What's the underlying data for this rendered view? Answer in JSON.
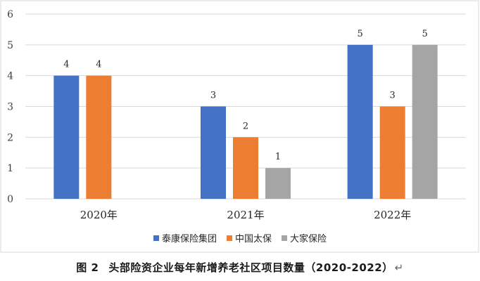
{
  "chart_data": {
    "type": "bar",
    "categories": [
      "2020年",
      "2021年",
      "2022年"
    ],
    "series": [
      {
        "name": "泰康保险集团",
        "color": "#4472C4",
        "values": [
          4,
          3,
          5
        ]
      },
      {
        "name": "中国太保",
        "color": "#ED7D31",
        "values": [
          4,
          2,
          3
        ]
      },
      {
        "name": "大家保险",
        "color": "#A5A5A5",
        "values": [
          null,
          1,
          5
        ]
      }
    ],
    "ylim": [
      0,
      6
    ],
    "yticks": [
      0,
      1,
      2,
      3,
      4,
      5,
      6
    ],
    "grid": true,
    "legend": "bottom",
    "title": "",
    "xlabel": "",
    "ylabel": ""
  },
  "caption": {
    "number": "图 2",
    "text": "头部险资企业每年新增养老社区项目数量（2020-2022）",
    "return_mark": "↵"
  }
}
